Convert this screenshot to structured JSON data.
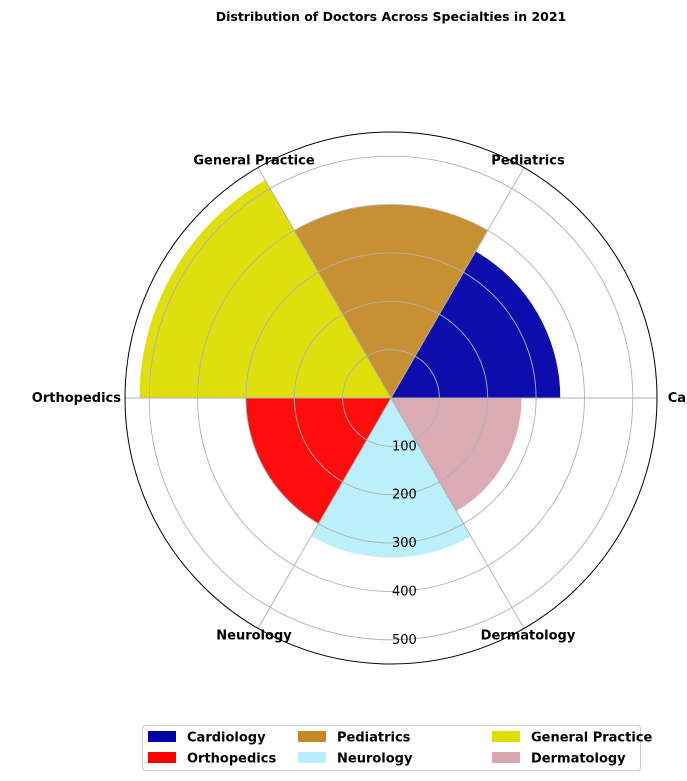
{
  "chart_data": {
    "type": "polar_bar",
    "title": "Distribution of Doctors Across Specialties in 2021",
    "categories": [
      "Cardiology",
      "Pediatrics",
      "General Practice",
      "Orthopedics",
      "Neurology",
      "Dermatology"
    ],
    "values": [
      350,
      400,
      520,
      300,
      330,
      270
    ],
    "colors": [
      "#0000aa",
      "#c48a28",
      "#dddd00",
      "#ff0000",
      "#b7eefc",
      "#d9a7b0"
    ],
    "radial_ticks": [
      "100",
      "200",
      "300",
      "400",
      "500"
    ],
    "radial_tick_values": [
      100,
      200,
      300,
      400,
      500
    ],
    "rlim": [
      0,
      550
    ],
    "grid": true,
    "legend": {
      "placement": "bottom-center",
      "ncol": 3,
      "entries": [
        "Cardiology",
        "Pediatrics",
        "General Practice",
        "Orthopedics",
        "Neurology",
        "Dermatology"
      ]
    }
  }
}
